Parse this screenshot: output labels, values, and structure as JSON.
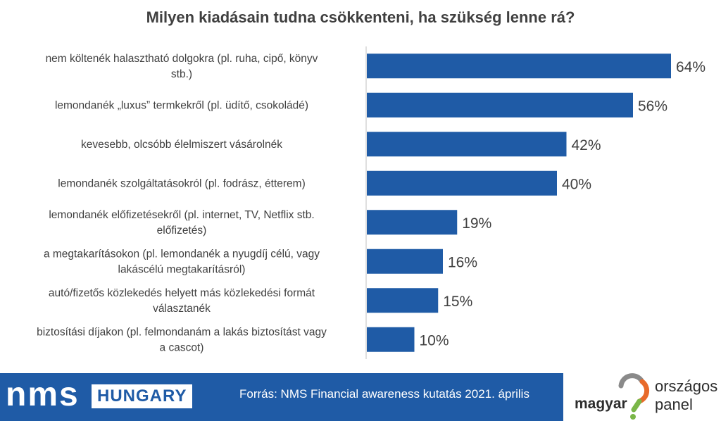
{
  "chart_data": {
    "type": "bar",
    "orientation": "horizontal",
    "title": "Milyen kiadásain tudna csökkenteni, ha szükség lenne rá?",
    "categories": [
      [
        "nem költenék halasztható dolgokra (pl. ruha, cipő, könyv",
        "stb.)"
      ],
      [
        "lemondanék „luxus” termkekről (pl. üdítő, csokoládé)"
      ],
      [
        "kevesebb, olcsóbb élelmiszert vásárolnék"
      ],
      [
        "lemondanék szolgáltatásokról (pl. fodrász, étterem)"
      ],
      [
        "lemondanék előfizetésekről (pl. internet, TV, Netflix stb.",
        "előfizetés)"
      ],
      [
        "a megtakarításokon (pl. lemondanék a nyugdíj célú, vagy",
        "lakáscélú megtakarításról)"
      ],
      [
        "autó/fizetős közlekedés helyett más közlekedési formát",
        "választanék"
      ],
      [
        "biztosítási díjakon (pl. felmondanám a lakás biztosítást vagy",
        "a cascot)"
      ]
    ],
    "values": [
      64,
      56,
      42,
      40,
      19,
      16,
      15,
      10
    ],
    "value_labels": [
      "64%",
      "56%",
      "42%",
      "40%",
      "19%",
      "16%",
      "15%",
      "10%"
    ],
    "unit": "%",
    "xlim": [
      0,
      100
    ],
    "grid": false,
    "legend": "none",
    "bar_color": "#1f5ba6"
  },
  "footer": {
    "brand": "nms",
    "brand_sub": "HUNGARY",
    "source": "Forrás: NMS Financial awareness kutatás 2021. április",
    "logo_word1": "magyar",
    "logo_word2": "országos",
    "logo_word3": "panel",
    "bar_color": "#1f5ba6"
  }
}
